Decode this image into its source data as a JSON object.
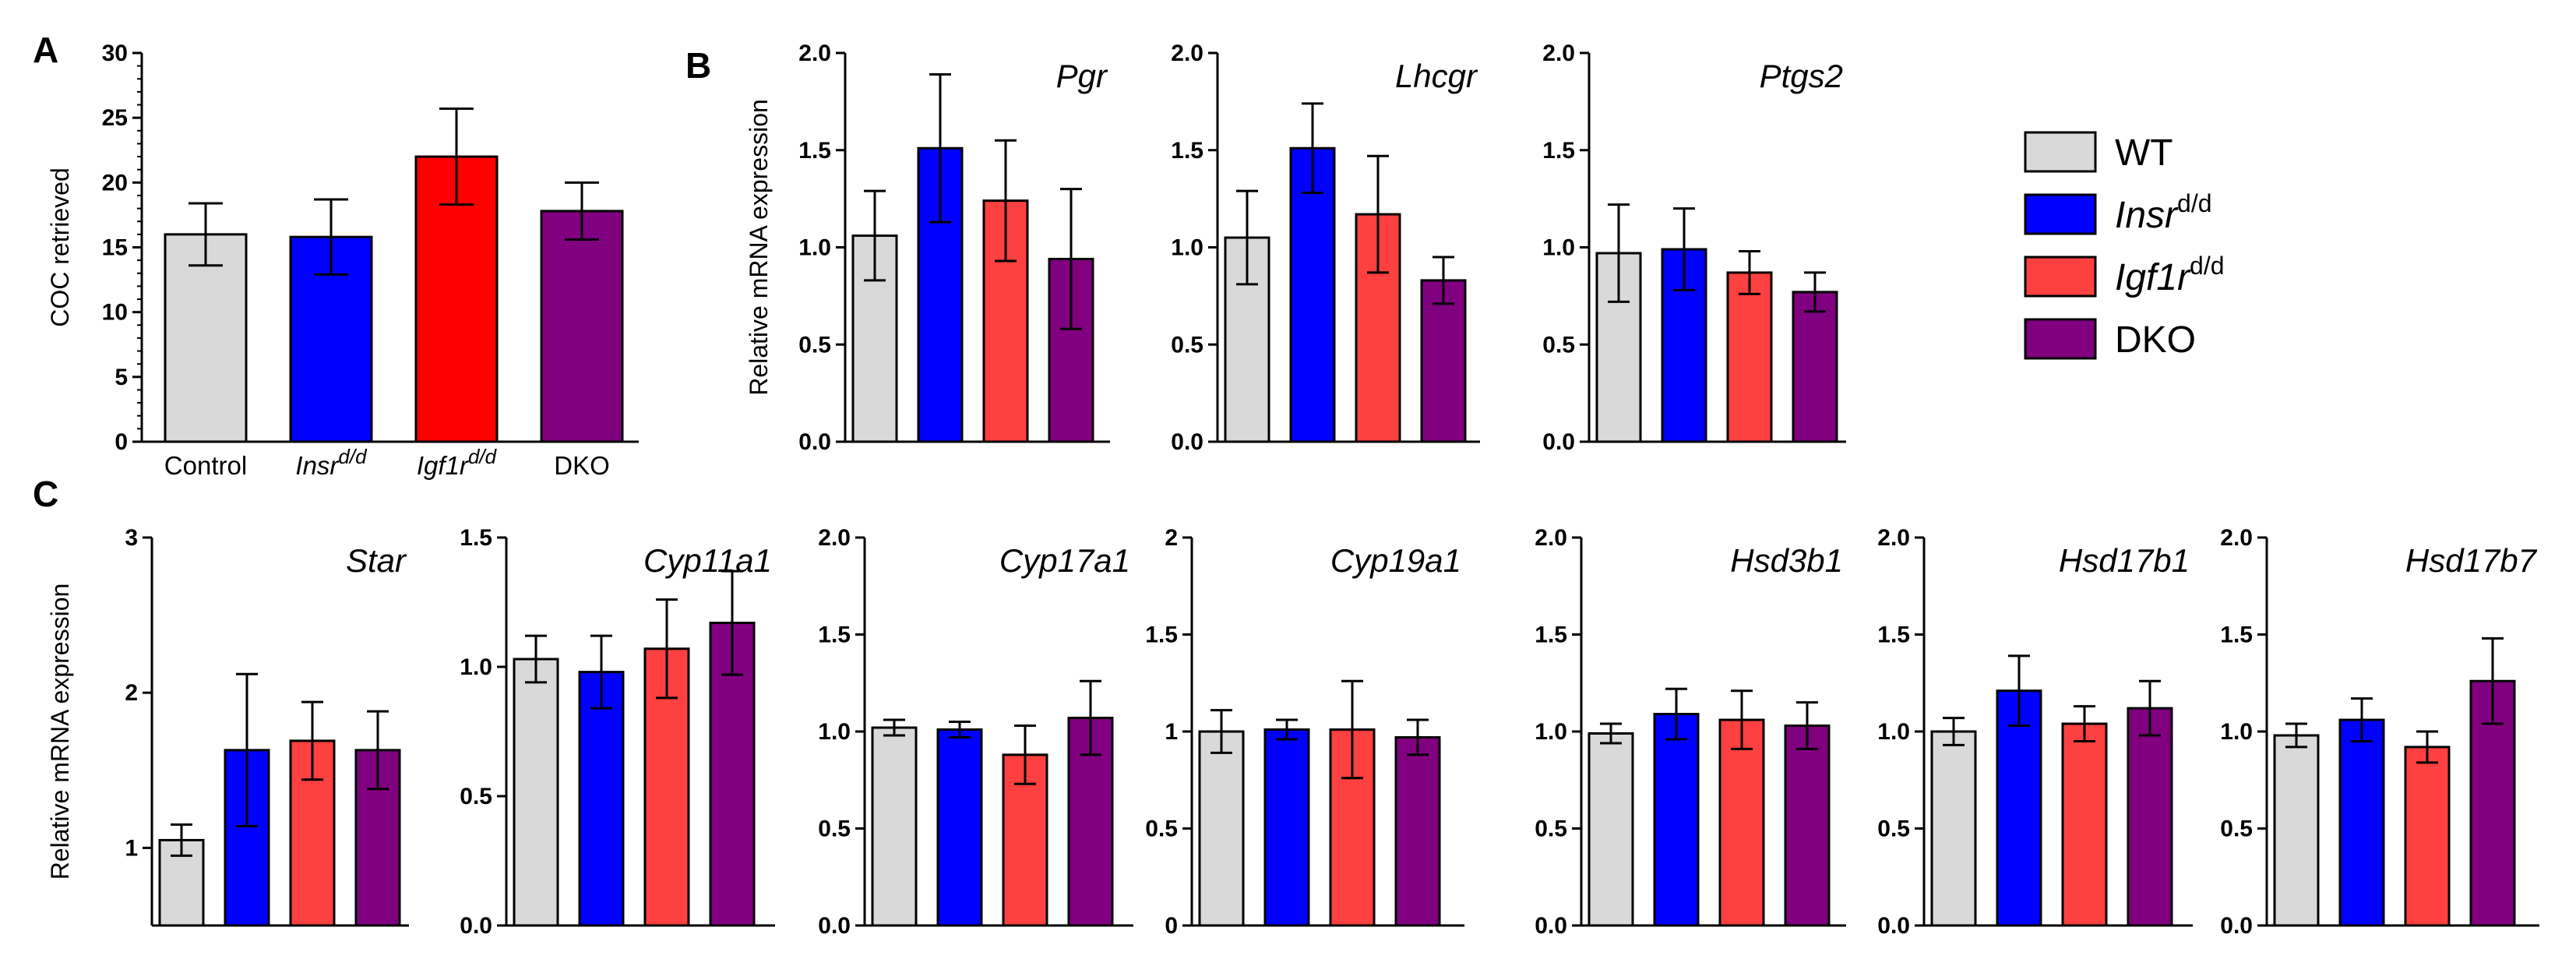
{
  "panel_labels": [
    "A",
    "B",
    "C"
  ],
  "legend": {
    "items": [
      {
        "label": "WT",
        "italic": false,
        "sup": "",
        "color": "#d9d9d9"
      },
      {
        "label": "Insr",
        "italic": true,
        "sup": "d/d",
        "color": "#0000ff"
      },
      {
        "label": "Igf1r",
        "italic": true,
        "sup": "d/d",
        "color": "#ff4040"
      },
      {
        "label": "DKO",
        "italic": false,
        "sup": "",
        "color": "#800080"
      }
    ]
  },
  "colors": {
    "wt": "#d9d9d9",
    "insr": "#0000ff",
    "igf1r_red_A": "#ff0000",
    "igf1r": "#ff4040",
    "dko": "#800080"
  },
  "chart_data": [
    {
      "id": "A",
      "type": "bar",
      "title": "",
      "ylabel": "COC retrieved",
      "categories": [
        "Control",
        "Insr",
        "Igf1r",
        "DKO"
      ],
      "category_sup": [
        "",
        "d/d",
        "d/d",
        ""
      ],
      "category_italic": [
        false,
        true,
        true,
        false
      ],
      "values": [
        16,
        15.8,
        22,
        17.8
      ],
      "errors": [
        2.4,
        2.9,
        3.7,
        2.2
      ],
      "ylim": [
        0,
        30
      ],
      "yticks": [
        "0",
        "5",
        "10",
        "15",
        "20",
        "25",
        "30"
      ]
    },
    {
      "id": "B1",
      "type": "bar",
      "title": "Pgr",
      "ylabel": "Relative mRNA expression",
      "categories": [
        "WT",
        "Insr d/d",
        "Igf1r d/d",
        "DKO"
      ],
      "values": [
        1.06,
        1.51,
        1.24,
        0.94
      ],
      "errors": [
        0.23,
        0.38,
        0.31,
        0.36
      ],
      "ylim": [
        0,
        2
      ],
      "yticks": [
        "0.0",
        "0.5",
        "1.0",
        "1.5",
        "2.0"
      ]
    },
    {
      "id": "B2",
      "type": "bar",
      "title": "Lhcgr",
      "ylabel": "",
      "categories": [
        "WT",
        "Insr d/d",
        "Igf1r d/d",
        "DKO"
      ],
      "values": [
        1.05,
        1.51,
        1.17,
        0.83
      ],
      "errors": [
        0.24,
        0.23,
        0.3,
        0.12
      ],
      "ylim": [
        0,
        2
      ],
      "yticks": [
        "0.0",
        "0.5",
        "1.0",
        "1.5",
        "2.0"
      ]
    },
    {
      "id": "B3",
      "type": "bar",
      "title": "Ptgs2",
      "ylabel": "",
      "categories": [
        "WT",
        "Insr d/d",
        "Igf1r d/d",
        "DKO"
      ],
      "values": [
        0.97,
        0.99,
        0.87,
        0.77
      ],
      "errors": [
        0.25,
        0.21,
        0.11,
        0.1
      ],
      "ylim": [
        0,
        2
      ],
      "yticks": [
        "0.0",
        "0.5",
        "1.0",
        "1.5",
        "2.0"
      ]
    },
    {
      "id": "C1",
      "type": "bar",
      "title": "Star",
      "ylabel": "Relative mRNA expression",
      "categories": [
        "WT",
        "Insr d/d",
        "Igf1r d/d",
        "DKO"
      ],
      "values": [
        1.05,
        1.63,
        1.69,
        1.63
      ],
      "errors": [
        0.1,
        0.49,
        0.25,
        0.25
      ],
      "ylim": [
        0.5,
        3
      ],
      "yticks": [
        "1",
        "2",
        "3"
      ],
      "ytick_values": [
        1,
        2,
        3
      ]
    },
    {
      "id": "C2",
      "type": "bar",
      "title": "Cyp11a1",
      "ylabel": "",
      "categories": [
        "WT",
        "Insr d/d",
        "Igf1r d/d",
        "DKO"
      ],
      "values": [
        1.03,
        0.98,
        1.07,
        1.17
      ],
      "errors": [
        0.09,
        0.14,
        0.19,
        0.2
      ],
      "ylim": [
        0,
        1.5
      ],
      "yticks": [
        "0.0",
        "0.5",
        "1.0",
        "1.5"
      ]
    },
    {
      "id": "C3",
      "type": "bar",
      "title": "Cyp17a1",
      "ylabel": "",
      "categories": [
        "WT",
        "Insr d/d",
        "Igf1r d/d",
        "DKO"
      ],
      "values": [
        1.02,
        1.01,
        0.88,
        1.07
      ],
      "errors": [
        0.04,
        0.04,
        0.15,
        0.19
      ],
      "ylim": [
        0,
        2
      ],
      "yticks": [
        "0.0",
        "0.5",
        "1.0",
        "1.5",
        "2.0"
      ]
    },
    {
      "id": "C4",
      "type": "bar",
      "title": "Cyp19a1",
      "ylabel": "",
      "categories": [
        "WT",
        "Insr d/d",
        "Igf1r d/d",
        "DKO"
      ],
      "values": [
        1.0,
        1.01,
        1.01,
        0.97
      ],
      "errors": [
        0.11,
        0.05,
        0.25,
        0.09
      ],
      "ylim": [
        0,
        2
      ],
      "yticks": [
        "0",
        "0.5",
        "1",
        "1.5",
        "2"
      ]
    },
    {
      "id": "C5",
      "type": "bar",
      "title": "Hsd3b1",
      "ylabel": "",
      "categories": [
        "WT",
        "Insr d/d",
        "Igf1r d/d",
        "DKO"
      ],
      "values": [
        0.99,
        1.09,
        1.06,
        1.03
      ],
      "errors": [
        0.05,
        0.13,
        0.15,
        0.12
      ],
      "ylim": [
        0,
        2
      ],
      "yticks": [
        "0.0",
        "0.5",
        "1.0",
        "1.5",
        "2.0"
      ]
    },
    {
      "id": "C6",
      "type": "bar",
      "title": "Hsd17b1",
      "ylabel": "",
      "categories": [
        "WT",
        "Insr d/d",
        "Igf1r d/d",
        "DKO"
      ],
      "values": [
        1.0,
        1.21,
        1.04,
        1.12
      ],
      "errors": [
        0.07,
        0.18,
        0.09,
        0.14
      ],
      "ylim": [
        0,
        2
      ],
      "yticks": [
        "0.0",
        "0.5",
        "1.0",
        "1.5",
        "2.0"
      ]
    },
    {
      "id": "C7",
      "type": "bar",
      "title": "Hsd17b7",
      "ylabel": "",
      "categories": [
        "WT",
        "Insr d/d",
        "Igf1r d/d",
        "DKO"
      ],
      "values": [
        0.98,
        1.06,
        0.92,
        1.26
      ],
      "errors": [
        0.06,
        0.11,
        0.08,
        0.22
      ],
      "ylim": [
        0,
        2
      ],
      "yticks": [
        "0.0",
        "0.5",
        "1.0",
        "1.5",
        "2.0"
      ]
    }
  ]
}
